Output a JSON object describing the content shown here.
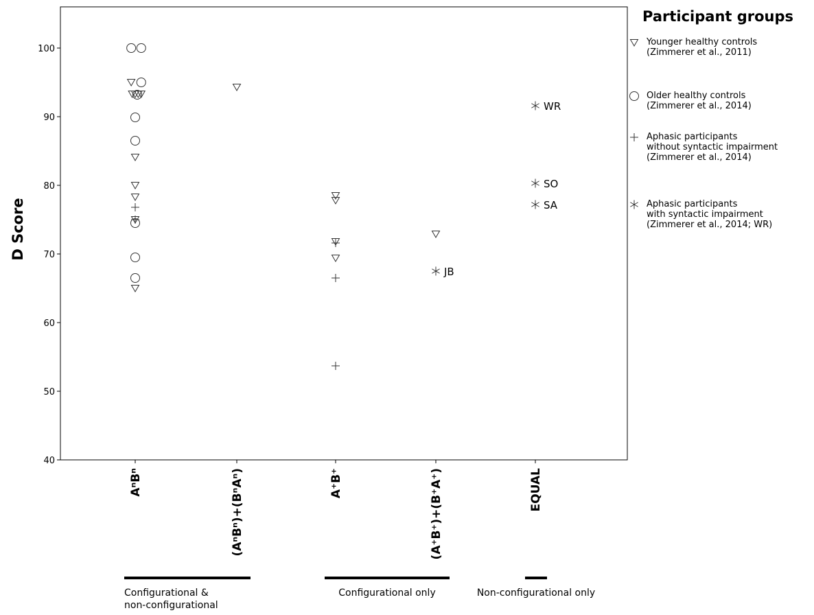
{
  "chart_data": {
    "type": "scatter",
    "title": "",
    "xlabel": "",
    "ylabel": "D Score",
    "ylim": [
      40,
      106
    ],
    "yticks": [
      40,
      50,
      60,
      70,
      80,
      90,
      100
    ],
    "categories": [
      "AⁿBⁿ",
      "(AⁿBⁿ)+(BⁿAⁿ)",
      "A⁺B⁺",
      "(A⁺B⁺)+(B⁺A⁺)",
      "EQUAL"
    ],
    "grid": false,
    "series": [
      {
        "name": "Younger healthy controls (Zimmerer et al., 2011)",
        "marker": "triangle-down",
        "points": [
          {
            "cat": 0,
            "y": 95.0,
            "dx": -0.04
          },
          {
            "cat": 0,
            "y": 93.3,
            "dx": -0.03
          },
          {
            "cat": 0,
            "y": 93.3,
            "dx": 0.0
          },
          {
            "cat": 0,
            "y": 93.3,
            "dx": 0.03
          },
          {
            "cat": 0,
            "y": 93.3,
            "dx": 0.06
          },
          {
            "cat": 0,
            "y": 84.1,
            "dx": 0.0
          },
          {
            "cat": 0,
            "y": 80.0,
            "dx": 0.0
          },
          {
            "cat": 0,
            "y": 78.3,
            "dx": 0.0
          },
          {
            "cat": 0,
            "y": 75.0,
            "dx": 0.0
          },
          {
            "cat": 0,
            "y": 65.0,
            "dx": 0.0
          },
          {
            "cat": 1,
            "y": 94.3,
            "dx": 0.0
          },
          {
            "cat": 2,
            "y": 78.5,
            "dx": 0.0
          },
          {
            "cat": 2,
            "y": 77.8,
            "dx": 0.0
          },
          {
            "cat": 2,
            "y": 71.8,
            "dx": 0.0
          },
          {
            "cat": 2,
            "y": 69.4,
            "dx": 0.0
          },
          {
            "cat": 3,
            "y": 72.9,
            "dx": 0.0
          }
        ]
      },
      {
        "name": "Older healthy controls (Zimmerer et al., 2014)",
        "marker": "circle",
        "points": [
          {
            "cat": 0,
            "y": 100.0,
            "dx": -0.04
          },
          {
            "cat": 0,
            "y": 100.0,
            "dx": 0.06
          },
          {
            "cat": 0,
            "y": 95.0,
            "dx": 0.06
          },
          {
            "cat": 0,
            "y": 93.2,
            "dx": 0.02
          },
          {
            "cat": 0,
            "y": 89.9,
            "dx": 0.0
          },
          {
            "cat": 0,
            "y": 86.5,
            "dx": 0.0
          },
          {
            "cat": 0,
            "y": 74.5,
            "dx": 0.0
          },
          {
            "cat": 0,
            "y": 69.5,
            "dx": 0.0
          },
          {
            "cat": 0,
            "y": 66.5,
            "dx": 0.0
          }
        ]
      },
      {
        "name": "Aphasic participants without syntactic impairment (Zimmerer et al., 2014)",
        "marker": "plus",
        "points": [
          {
            "cat": 0,
            "y": 76.8,
            "dx": 0.0
          },
          {
            "cat": 0,
            "y": 75.0,
            "dx": 0.0
          },
          {
            "cat": 2,
            "y": 71.6,
            "dx": 0.0
          },
          {
            "cat": 2,
            "y": 66.5,
            "dx": 0.0
          },
          {
            "cat": 2,
            "y": 53.7,
            "dx": 0.0
          }
        ]
      },
      {
        "name": "Aphasic participants with syntactic impairment (Zimmerer et al., 2014; WR)",
        "marker": "asterisk",
        "points": [
          {
            "cat": 3,
            "y": 67.5,
            "dx": 0.0,
            "label": "JB"
          },
          {
            "cat": 4,
            "y": 91.6,
            "dx": 0.0,
            "label": "WR"
          },
          {
            "cat": 4,
            "y": 80.3,
            "dx": 0.0,
            "label": "SO"
          },
          {
            "cat": 4,
            "y": 77.2,
            "dx": 0.0,
            "label": "SA"
          }
        ]
      }
    ],
    "groups": [
      {
        "label": "Configurational &\nnon-configurational",
        "from": 0,
        "to": 1
      },
      {
        "label": "Configurational only",
        "from": 2,
        "to": 3
      },
      {
        "label": "Non-configurational only",
        "from": 4,
        "to": 4
      }
    ]
  },
  "legend": {
    "title": "Participant groups",
    "items": [
      {
        "marker": "triangle-down",
        "text": "Younger healthy controls\n(Zimmerer et al., 2011)"
      },
      {
        "marker": "circle",
        "text": "Older healthy controls\n(Zimmerer et al., 2014)"
      },
      {
        "marker": "plus",
        "text": "Aphasic participants\nwithout syntactic impairment\n(Zimmerer et al., 2014)"
      },
      {
        "marker": "asterisk",
        "text": "Aphasic participants\nwith syntactic impairment\n(Zimmerer et al., 2014; WR)"
      }
    ]
  }
}
